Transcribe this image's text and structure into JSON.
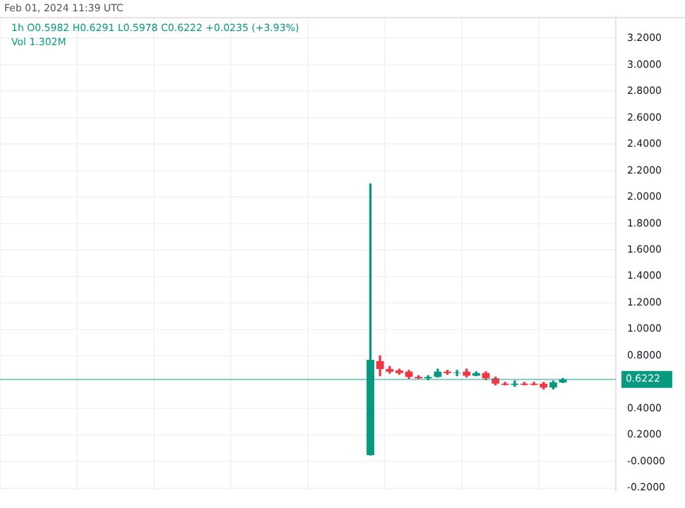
{
  "chart_data": {
    "type": "candlestick",
    "categories": [
      null,
      null,
      null,
      null,
      null,
      null,
      null,
      null,
      null,
      null,
      null,
      null,
      null,
      null,
      null,
      null,
      null,
      null,
      null,
      null,
      null,
      null,
      null,
      null,
      null,
      null,
      null,
      null,
      null,
      null,
      null,
      null,
      null,
      null,
      null,
      null,
      null,
      null,
      null,
      null,
      null,
      null,
      null,
      null,
      null,
      null,
      null,
      null,
      null,
      null,
      null,
      null,
      null,
      null,
      null,
      null,
      null,
      null,
      null,
      null,
      null,
      null,
      null,
      null
    ],
    "ohlc": [
      null,
      null,
      null,
      null,
      null,
      null,
      null,
      null,
      null,
      null,
      null,
      null,
      null,
      null,
      null,
      null,
      null,
      null,
      null,
      null,
      null,
      null,
      null,
      null,
      null,
      null,
      null,
      null,
      null,
      null,
      null,
      null,
      null,
      null,
      null,
      null,
      null,
      null,
      [
        0.05,
        2.1,
        0.05,
        0.77
      ],
      [
        0.76,
        0.8,
        0.65,
        0.7
      ],
      [
        0.7,
        0.72,
        0.67,
        0.68
      ],
      [
        0.69,
        0.7,
        0.66,
        0.67
      ],
      [
        0.68,
        0.69,
        0.63,
        0.64
      ],
      [
        0.64,
        0.65,
        0.63,
        0.63
      ],
      [
        0.63,
        0.65,
        0.62,
        0.64
      ],
      [
        0.64,
        0.7,
        0.64,
        0.68
      ],
      [
        0.68,
        0.69,
        0.66,
        0.67
      ],
      [
        0.67,
        0.69,
        0.65,
        0.67
      ],
      [
        0.68,
        0.7,
        0.64,
        0.65
      ],
      [
        0.65,
        0.68,
        0.65,
        0.67
      ],
      [
        0.67,
        0.68,
        0.62,
        0.63
      ],
      [
        0.63,
        0.64,
        0.58,
        0.59
      ],
      [
        0.59,
        0.6,
        0.58,
        0.58
      ],
      [
        0.58,
        0.61,
        0.57,
        0.59
      ],
      [
        0.59,
        0.6,
        0.58,
        0.58
      ],
      [
        0.59,
        0.6,
        0.58,
        0.58
      ],
      [
        0.59,
        0.6,
        0.55,
        0.56
      ],
      [
        0.56,
        0.61,
        0.55,
        0.6
      ],
      [
        0.5982,
        0.6291,
        0.5978,
        0.6222
      ],
      null,
      null,
      null,
      null,
      null
    ],
    "colors": [
      null,
      null,
      null,
      null,
      null,
      null,
      null,
      null,
      null,
      null,
      null,
      null,
      null,
      null,
      null,
      null,
      null,
      null,
      null,
      null,
      null,
      null,
      null,
      null,
      null,
      null,
      null,
      null,
      null,
      null,
      null,
      null,
      null,
      null,
      null,
      null,
      null,
      null,
      "#089981",
      "#f23645",
      "#f23645",
      "#f23645",
      "#f23645",
      "#f23645",
      "#089981",
      "#089981",
      "#f23645",
      "#089981",
      "#f23645",
      "#089981",
      "#f23645",
      "#f23645",
      "#f23645",
      "#089981",
      "#f23645",
      "#f23645",
      "#f23645",
      "#089981",
      "#089981",
      null,
      null,
      null,
      null,
      null
    ],
    "ylim": [
      -0.22,
      3.36
    ],
    "yticks": [
      {
        "value": 3.2,
        "label": "3.2000"
      },
      {
        "value": 3,
        "label": "3.0000"
      },
      {
        "value": 2.8,
        "label": "2.8000"
      },
      {
        "value": 2.6,
        "label": "2.6000"
      },
      {
        "value": 2.4,
        "label": "2.4000"
      },
      {
        "value": 2.2,
        "label": "2.2000"
      },
      {
        "value": 2,
        "label": "2.0000"
      },
      {
        "value": 1.8,
        "label": "1.8000"
      },
      {
        "value": 1.6,
        "label": "1.6000"
      },
      {
        "value": 1.4,
        "label": "1.4000"
      },
      {
        "value": 1.2,
        "label": "1.2000"
      },
      {
        "value": 1,
        "label": "1.0000"
      },
      {
        "value": 0.8,
        "label": "0.8000"
      },
      {
        "value": 0.4,
        "label": "0.4000"
      },
      {
        "value": 0.2,
        "label": "0.2000"
      },
      {
        "value": 0,
        "label": "-0.0000"
      },
      {
        "value": -0.2,
        "label": "-0.2000"
      }
    ],
    "ref_lines": [
      {
        "axis": "y",
        "value": 0.6222,
        "label": "0.6222",
        "color": "#089981"
      }
    ],
    "grid": true,
    "annotations": [
      "Feb 01, 2024 11:39 UTC",
      "1h  O0.5982  H0.6291  L0.5978  C0.6222  +0.0235 (+3.93%)",
      "Vol 1.302M"
    ]
  }
}
